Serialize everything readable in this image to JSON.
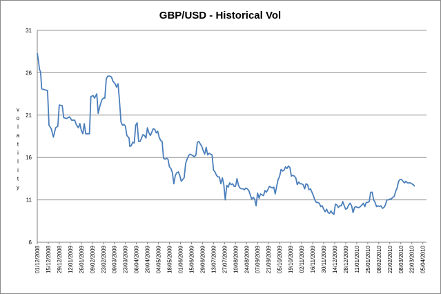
{
  "chart_data": {
    "type": "line",
    "title": "GBP/USD - Historical Vol",
    "xlabel": "",
    "ylabel": "Volatility",
    "ylim": [
      6,
      31
    ],
    "yticks": [
      6,
      11,
      16,
      21,
      26,
      31
    ],
    "grid": true,
    "legend": "none",
    "xtick_labels": [
      "01/12/2008",
      "15/12/2008",
      "29/12/2008",
      "12/01/2009",
      "26/01/2009",
      "09/02/2009",
      "23/02/2009",
      "09/03/2009",
      "23/03/2009",
      "06/04/2009",
      "20/04/2009",
      "04/05/2009",
      "18/05/2009",
      "01/06/2009",
      "15/06/2009",
      "29/06/2009",
      "13/07/2009",
      "27/07/2009",
      "10/08/2009",
      "24/08/2009",
      "07/09/2009",
      "21/09/2009",
      "05/10/2009",
      "19/10/2009",
      "02/11/2009",
      "16/11/2009",
      "30/11/2009",
      "14/12/2009",
      "28/12/2009",
      "11/01/2010",
      "25/01/2010",
      "08/02/2010",
      "22/02/2010",
      "08/03/2010",
      "22/03/2010",
      "05/04/2010"
    ],
    "series": [
      {
        "color": "#4a7ebb",
        "points": [
          [
            0,
            28.3
          ],
          [
            0.15,
            27.5
          ],
          [
            0.3,
            26.4
          ],
          [
            0.45,
            26.1
          ],
          [
            0.6,
            24.1
          ],
          [
            1.0,
            24.0
          ],
          [
            1.4,
            23.9
          ],
          [
            1.6,
            19.8
          ],
          [
            1.9,
            19.4
          ],
          [
            2.2,
            18.4
          ],
          [
            2.5,
            19.5
          ],
          [
            2.8,
            19.7
          ],
          [
            3.0,
            22.2
          ],
          [
            3.4,
            22.1
          ],
          [
            3.6,
            20.7
          ],
          [
            4.0,
            20.6
          ],
          [
            4.4,
            20.8
          ],
          [
            4.7,
            20.4
          ],
          [
            5.1,
            20.4
          ],
          [
            5.3,
            19.9
          ],
          [
            5.6,
            19.5
          ],
          [
            5.8,
            20.0
          ],
          [
            6.0,
            19.2
          ],
          [
            6.2,
            18.8
          ],
          [
            6.4,
            20.0
          ],
          [
            6.6,
            18.8
          ],
          [
            6.9,
            18.8
          ],
          [
            7.1,
            18.8
          ],
          [
            7.3,
            23.2
          ],
          [
            7.6,
            23.3
          ],
          [
            7.8,
            23.0
          ],
          [
            8.1,
            23.5
          ],
          [
            8.3,
            21.2
          ],
          [
            8.5,
            22.0
          ],
          [
            8.8,
            22.8
          ],
          [
            9.0,
            23.0
          ],
          [
            9.2,
            23.0
          ],
          [
            9.4,
            25.3
          ],
          [
            9.6,
            25.6
          ],
          [
            9.9,
            25.6
          ],
          [
            10.1,
            25.5
          ],
          [
            10.3,
            25.0
          ],
          [
            10.6,
            24.7
          ],
          [
            10.8,
            24.3
          ],
          [
            11.0,
            24.7
          ],
          [
            11.2,
            22.6
          ],
          [
            11.4,
            20.2
          ],
          [
            11.6,
            19.8
          ],
          [
            11.8,
            19.9
          ],
          [
            12.0,
            19.7
          ],
          [
            12.2,
            18.6
          ],
          [
            12.5,
            18.3
          ],
          [
            12.6,
            17.3
          ],
          [
            12.8,
            17.4
          ],
          [
            13.0,
            17.8
          ],
          [
            13.2,
            17.7
          ],
          [
            13.4,
            19.8
          ],
          [
            13.6,
            20.1
          ],
          [
            13.8,
            17.9
          ],
          [
            14.0,
            17.9
          ],
          [
            14.2,
            18.3
          ],
          [
            14.4,
            18.7
          ],
          [
            14.6,
            18.6
          ],
          [
            14.8,
            18.3
          ],
          [
            15.0,
            19.5
          ],
          [
            15.2,
            18.9
          ],
          [
            15.4,
            18.6
          ],
          [
            15.6,
            19.0
          ],
          [
            15.8,
            19.4
          ],
          [
            16.0,
            19.3
          ],
          [
            16.2,
            18.9
          ],
          [
            16.4,
            19.1
          ],
          [
            16.6,
            18.4
          ],
          [
            16.8,
            18.0
          ],
          [
            17.0,
            17.9
          ],
          [
            17.2,
            15.9
          ],
          [
            17.4,
            15.8
          ],
          [
            17.6,
            15.9
          ],
          [
            17.8,
            15.8
          ],
          [
            18.0,
            14.9
          ],
          [
            18.2,
            14.7
          ],
          [
            18.4,
            14.2
          ],
          [
            18.6,
            12.9
          ],
          [
            18.8,
            13.9
          ],
          [
            19.0,
            14.2
          ],
          [
            19.2,
            14.3
          ],
          [
            19.4,
            13.9
          ],
          [
            19.6,
            13.2
          ],
          [
            19.8,
            13.4
          ],
          [
            20.0,
            13.6
          ],
          [
            20.2,
            15.3
          ],
          [
            20.4,
            15.8
          ],
          [
            20.6,
            16.2
          ],
          [
            20.8,
            16.4
          ],
          [
            21.0,
            16.3
          ],
          [
            21.2,
            16.2
          ],
          [
            21.4,
            16.1
          ],
          [
            21.6,
            16.3
          ],
          [
            21.8,
            17.8
          ],
          [
            22.0,
            17.9
          ],
          [
            22.2,
            17.6
          ],
          [
            22.4,
            17.3
          ],
          [
            22.6,
            16.8
          ],
          [
            22.8,
            16.4
          ],
          [
            23.0,
            17.2
          ],
          [
            23.2,
            16.3
          ],
          [
            23.4,
            16.5
          ],
          [
            23.6,
            16.4
          ],
          [
            23.8,
            16.3
          ],
          [
            24.0,
            14.5
          ],
          [
            24.2,
            14.3
          ],
          [
            24.4,
            13.9
          ],
          [
            24.6,
            13.7
          ],
          [
            24.8,
            13.7
          ],
          [
            25.0,
            12.9
          ],
          [
            25.2,
            13.6
          ],
          [
            25.4,
            12.8
          ],
          [
            25.6,
            11.0
          ],
          [
            25.8,
            12.7
          ],
          [
            26.0,
            12.5
          ],
          [
            26.2,
            13.0
          ],
          [
            26.4,
            12.8
          ],
          [
            26.6,
            12.9
          ],
          [
            26.8,
            12.6
          ],
          [
            27.0,
            12.6
          ],
          [
            27.2,
            13.5
          ],
          [
            27.4,
            12.7
          ],
          [
            27.6,
            12.4
          ],
          [
            27.8,
            12.3
          ],
          [
            28.0,
            12.3
          ],
          [
            28.2,
            12.2
          ],
          [
            28.4,
            12.4
          ],
          [
            28.6,
            12.3
          ],
          [
            28.8,
            12.1
          ],
          [
            29.0,
            11.6
          ],
          [
            29.2,
            11.1
          ],
          [
            29.4,
            11.3
          ],
          [
            29.6,
            11.1
          ],
          [
            29.8,
            10.3
          ],
          [
            30.0,
            11.8
          ],
          [
            30.2,
            11.2
          ],
          [
            30.4,
            11.7
          ],
          [
            30.6,
            11.6
          ],
          [
            30.8,
            11.5
          ],
          [
            31.0,
            12.1
          ],
          [
            31.2,
            11.9
          ],
          [
            31.4,
            12.2
          ],
          [
            31.6,
            12.6
          ],
          [
            31.8,
            12.5
          ],
          [
            32.0,
            12.4
          ],
          [
            32.2,
            12.5
          ],
          [
            32.4,
            11.7
          ],
          [
            32.6,
            12.6
          ],
          [
            32.8,
            13.4
          ],
          [
            33.0,
            13.8
          ],
          [
            33.2,
            14.6
          ],
          [
            33.4,
            14.4
          ],
          [
            33.6,
            14.5
          ],
          [
            33.8,
            14.9
          ],
          [
            34.0,
            14.7
          ],
          [
            34.2,
            15.0
          ],
          [
            34.4,
            14.8
          ],
          [
            34.6,
            13.8
          ],
          [
            34.8,
            13.9
          ],
          [
            35.0,
            13.8
          ],
          [
            35.2,
            13.6
          ],
          [
            35.4,
            12.8
          ],
          [
            35.6,
            13.1
          ],
          [
            35.8,
            12.9
          ],
          [
            36.0,
            12.9
          ],
          [
            36.2,
            12.8
          ],
          [
            36.4,
            12.3
          ],
          [
            36.6,
            12.9
          ],
          [
            36.8,
            12.8
          ],
          [
            37.0,
            12.2
          ],
          [
            37.2,
            12.3
          ],
          [
            37.4,
            11.9
          ],
          [
            37.6,
            11.5
          ],
          [
            37.8,
            11.0
          ],
          [
            38.0,
            10.7
          ],
          [
            38.2,
            10.7
          ],
          [
            38.4,
            10.6
          ],
          [
            38.6,
            10.2
          ],
          [
            38.8,
            10.3
          ],
          [
            39.0,
            9.9
          ],
          [
            39.2,
            9.6
          ],
          [
            39.4,
            9.9
          ],
          [
            39.6,
            9.5
          ],
          [
            39.8,
            9.4
          ],
          [
            40.0,
            9.7
          ],
          [
            40.2,
            9.4
          ],
          [
            40.4,
            9.3
          ],
          [
            40.6,
            10.5
          ],
          [
            40.8,
            10.4
          ],
          [
            41.0,
            10.1
          ],
          [
            41.2,
            10.3
          ],
          [
            41.4,
            10.3
          ],
          [
            41.6,
            10.8
          ],
          [
            41.8,
            10.3
          ],
          [
            42.0,
            9.9
          ],
          [
            42.2,
            10.0
          ],
          [
            42.4,
            10.4
          ],
          [
            42.6,
            10.6
          ],
          [
            42.8,
            10.3
          ],
          [
            43.0,
            9.5
          ],
          [
            43.2,
            10.1
          ],
          [
            43.4,
            10.2
          ],
          [
            43.6,
            10.1
          ],
          [
            43.8,
            10.1
          ],
          [
            44.0,
            10.2
          ],
          [
            44.2,
            10.4
          ],
          [
            44.4,
            10.6
          ],
          [
            44.6,
            10.2
          ],
          [
            44.8,
            10.7
          ],
          [
            45.0,
            10.7
          ],
          [
            45.2,
            10.8
          ],
          [
            45.4,
            11.9
          ],
          [
            45.6,
            11.9
          ],
          [
            45.8,
            11.0
          ],
          [
            46.0,
            10.7
          ],
          [
            46.2,
            10.2
          ],
          [
            46.4,
            10.3
          ],
          [
            46.6,
            10.2
          ],
          [
            46.8,
            10.3
          ],
          [
            47.0,
            10.0
          ],
          [
            47.2,
            10.1
          ],
          [
            47.4,
            10.4
          ],
          [
            47.6,
            11.0
          ],
          [
            47.8,
            11.0
          ],
          [
            48.0,
            11.1
          ],
          [
            48.2,
            11.1
          ],
          [
            48.4,
            11.3
          ],
          [
            48.6,
            11.4
          ],
          [
            48.8,
            12.0
          ],
          [
            49.0,
            12.4
          ],
          [
            49.2,
            13.2
          ],
          [
            49.4,
            13.4
          ],
          [
            49.6,
            13.4
          ],
          [
            49.8,
            13.2
          ],
          [
            50.0,
            13.0
          ],
          [
            50.2,
            13.2
          ],
          [
            50.4,
            13.0
          ],
          [
            50.6,
            13.0
          ],
          [
            50.8,
            13.0
          ],
          [
            51.0,
            12.9
          ],
          [
            51.2,
            12.8
          ],
          [
            51.4,
            12.6
          ]
        ]
      }
    ]
  }
}
